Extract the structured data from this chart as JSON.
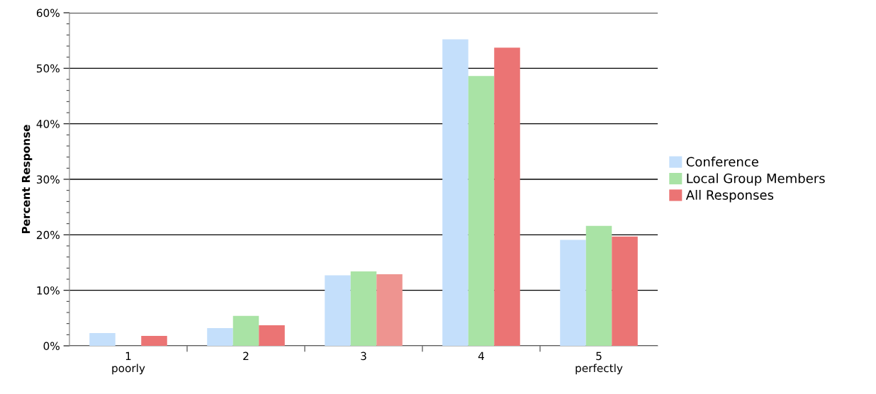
{
  "chart_data": {
    "type": "bar",
    "ylabel": "Percent Response",
    "categories": [
      "1\npoorly",
      "2",
      "3",
      "4",
      "5\nperfectly"
    ],
    "series": [
      {
        "name": "Conference",
        "color": "#c4dffb",
        "values": [
          2.3,
          3.2,
          12.7,
          55.2,
          19.1
        ]
      },
      {
        "name": "Local Group Members",
        "color": "#a9e3a5",
        "values": [
          0,
          5.4,
          13.4,
          48.6,
          21.6
        ]
      },
      {
        "name": "All Responses",
        "color": "#eb7474",
        "colors": [
          "#eb7474",
          "#eb7474",
          "#ee9490",
          "#eb7474",
          "#eb7474"
        ],
        "values": [
          1.8,
          3.7,
          12.9,
          53.7,
          19.7
        ]
      }
    ],
    "ylim": [
      0,
      60
    ],
    "yticks": [
      {
        "value": 0,
        "label": "0%"
      },
      {
        "value": 2,
        "label": null
      },
      {
        "value": 4,
        "label": null
      },
      {
        "value": 6,
        "label": null
      },
      {
        "value": 8,
        "label": null
      },
      {
        "value": 10,
        "label": "10%"
      },
      {
        "value": 12,
        "label": null
      },
      {
        "value": 14,
        "label": null
      },
      {
        "value": 16,
        "label": null
      },
      {
        "value": 18,
        "label": null
      },
      {
        "value": 20,
        "label": "20%"
      },
      {
        "value": 22,
        "label": null
      },
      {
        "value": 24,
        "label": null
      },
      {
        "value": 26,
        "label": null
      },
      {
        "value": 28,
        "label": null
      },
      {
        "value": 30,
        "label": "30%"
      },
      {
        "value": 32,
        "label": null
      },
      {
        "value": 34,
        "label": null
      },
      {
        "value": 36,
        "label": null
      },
      {
        "value": 38,
        "label": null
      },
      {
        "value": 40,
        "label": "40%"
      },
      {
        "value": 42,
        "label": null
      },
      {
        "value": 44,
        "label": null
      },
      {
        "value": 46,
        "label": null
      },
      {
        "value": 48,
        "label": null
      },
      {
        "value": 50,
        "label": "50%"
      },
      {
        "value": 52,
        "label": null
      },
      {
        "value": 54,
        "label": null
      },
      {
        "value": 56,
        "label": null
      },
      {
        "value": 58,
        "label": null
      },
      {
        "value": 60,
        "label": "60%"
      }
    ],
    "grid": "y",
    "legend": "right"
  }
}
